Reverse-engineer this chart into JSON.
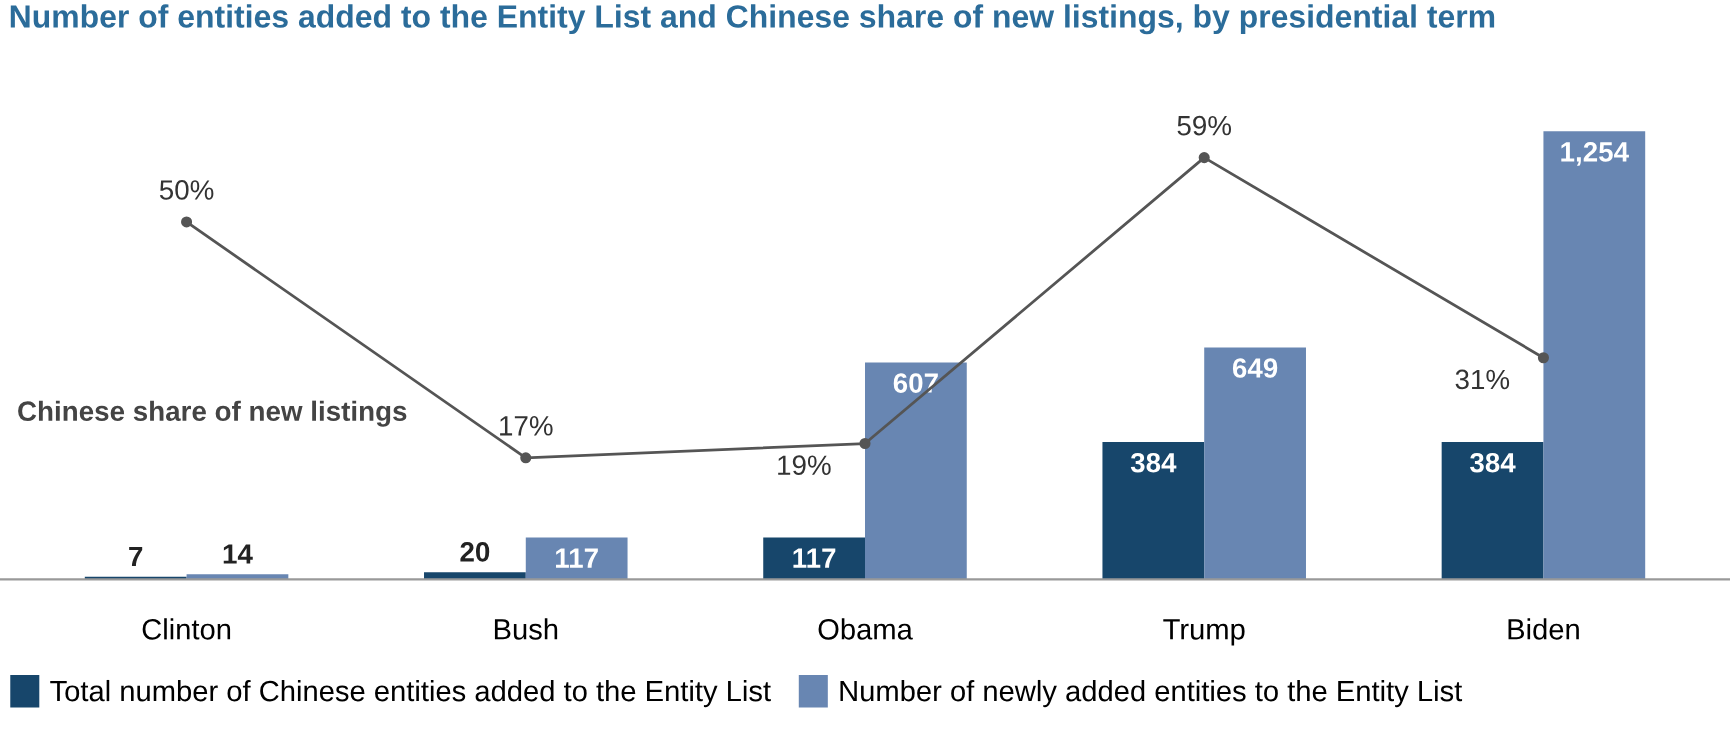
{
  "chart_data": {
    "type": "bar",
    "title": "Number of entities added to the Entity List and Chinese share of new listings, by presidential term",
    "categories": [
      "Clinton",
      "Bush",
      "Obama",
      "Trump",
      "Biden"
    ],
    "series": [
      {
        "name": "Total number of Chinese entities added to the Entity List",
        "color": "#17466b",
        "values": [
          7,
          20,
          117,
          384,
          384
        ],
        "value_labels": [
          "7",
          "20",
          "117",
          "384",
          "384"
        ]
      },
      {
        "name": "Number of newly added entities to the Entity List",
        "color": "#6886b2",
        "values": [
          14,
          117,
          607,
          649,
          1254
        ],
        "value_labels": [
          "14",
          "117",
          "607",
          "649",
          "1,254"
        ]
      },
      {
        "name": "Chinese share of new listings",
        "type": "line",
        "axis": "y2",
        "color": "#555555",
        "values": [
          50,
          17,
          19,
          59,
          31
        ],
        "value_labels": [
          "50%",
          "17%",
          "19%",
          "59%",
          "31%"
        ]
      }
    ],
    "legend": "bottom",
    "grid": false,
    "marker": "circle",
    "line_style": "solid"
  }
}
